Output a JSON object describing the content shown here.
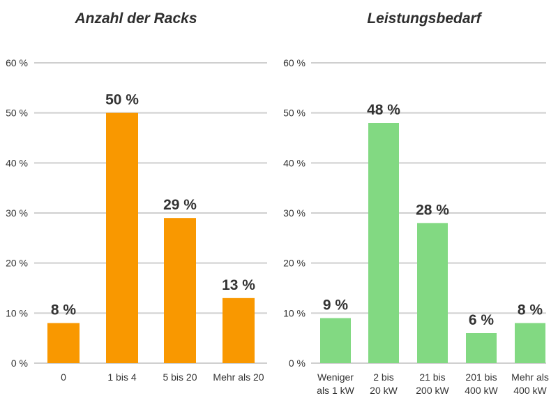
{
  "chart_data": [
    {
      "type": "bar",
      "title": "Anzahl der Racks",
      "categories": [
        [
          "0"
        ],
        [
          "1 bis 4"
        ],
        [
          "5 bis 20"
        ],
        [
          "Mehr als 20"
        ]
      ],
      "values": [
        8,
        50,
        29,
        13
      ],
      "data_labels": [
        "8 %",
        "50 %",
        "29 %",
        "13 %"
      ],
      "ylim": [
        0,
        60
      ],
      "yticks": [
        "0 %",
        "10 %",
        "20 %",
        "30 %",
        "40 %",
        "50 %",
        "60 %"
      ],
      "color": "#f99800",
      "grid": true
    },
    {
      "type": "bar",
      "title": "Leistungsbedarf",
      "categories": [
        [
          "Weniger",
          "als 1 kW"
        ],
        [
          "2 bis",
          "20 kW"
        ],
        [
          "21 bis",
          "200 kW"
        ],
        [
          "201 bis",
          "400 kW"
        ],
        [
          "Mehr als",
          "400 kW"
        ]
      ],
      "values": [
        9,
        48,
        28,
        6,
        8
      ],
      "data_labels": [
        "9 %",
        "48 %",
        "28 %",
        "6 %",
        "8 %"
      ],
      "ylim": [
        0,
        60
      ],
      "yticks": [
        "0 %",
        "10 %",
        "20 %",
        "30 %",
        "40 %",
        "50 %",
        "60 %"
      ],
      "color": "#82d982",
      "grid": true
    }
  ]
}
